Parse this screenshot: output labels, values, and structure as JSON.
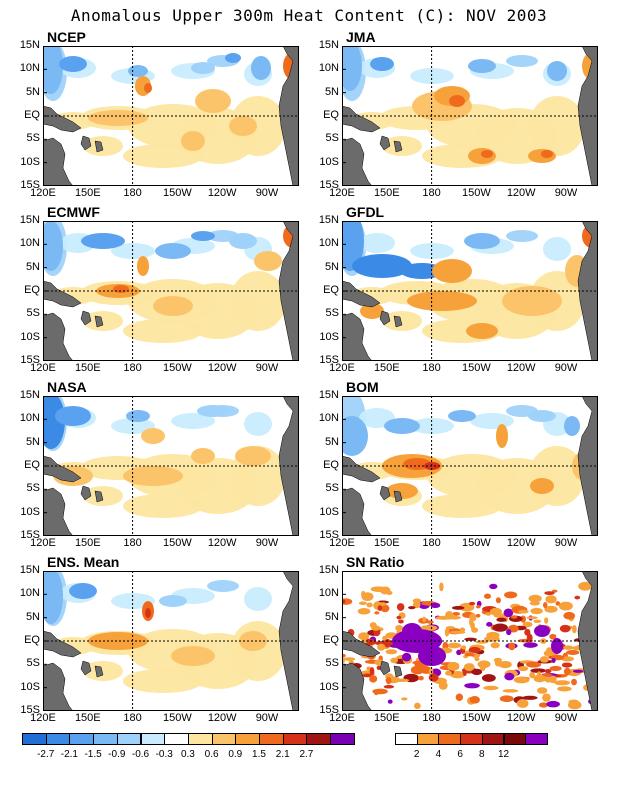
{
  "title": "Anomalous Upper 300m Heat Content (C): NOV 2003",
  "axes": {
    "lat_labels": [
      "15N",
      "10N",
      "5N",
      "EQ",
      "5S",
      "10S",
      "15S"
    ],
    "lon_labels": [
      "120E",
      "150E",
      "180",
      "150W",
      "120W",
      "90W"
    ]
  },
  "panels": [
    {
      "id": "ncep",
      "label": "NCEP"
    },
    {
      "id": "jma",
      "label": "JMA"
    },
    {
      "id": "ecmwf",
      "label": "ECMWF"
    },
    {
      "id": "gfdl",
      "label": "GFDL"
    },
    {
      "id": "nasa",
      "label": "NASA"
    },
    {
      "id": "bom",
      "label": "BOM"
    },
    {
      "id": "ens",
      "label": "ENS. Mean"
    },
    {
      "id": "sn",
      "label": "SN Ratio"
    }
  ],
  "legend_anomaly": {
    "colors": [
      "#1f6fd6",
      "#3a8ae6",
      "#5aa2f0",
      "#7bb9f5",
      "#9fd2fa",
      "#c8ecfd",
      "#ffffff",
      "#fde6a0",
      "#fcc46a",
      "#f7a13a",
      "#f06a1e",
      "#d6321a",
      "#a01414",
      "#7a00b4"
    ],
    "labels": [
      "-2.7",
      "-2.1",
      "-1.5",
      "-0.9",
      "-0.6",
      "-0.3",
      "0.3",
      "0.6",
      "0.9",
      "1.5",
      "2.1",
      "2.7"
    ]
  },
  "legend_sn": {
    "colors": [
      "#ffffff",
      "#f7a13a",
      "#f06a1e",
      "#d6321a",
      "#a01414",
      "#7a0a0a",
      "#8a00c0"
    ],
    "labels": [
      "2",
      "4",
      "6",
      "8",
      "12"
    ]
  }
}
